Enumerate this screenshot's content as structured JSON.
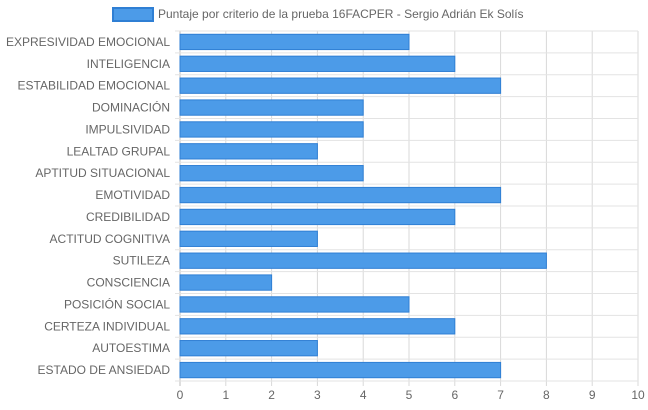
{
  "chart_data": {
    "type": "bar",
    "orientation": "horizontal",
    "categories": [
      "EXPRESIVIDAD EMOCIONAL",
      "INTELIGENCIA",
      "ESTABILIDAD EMOCIONAL",
      "DOMINACIÓN",
      "IMPULSIVIDAD",
      "LEALTAD GRUPAL",
      "APTITUD SITUACIONAL",
      "EMOTIVIDAD",
      "CREDIBILIDAD",
      "ACTITUD COGNITIVA",
      "SUTILEZA",
      "CONSCIENCIA",
      "POSICIÓN SOCIAL",
      "CERTEZA INDIVIDUAL",
      "AUTOESTIMA",
      "ESTADO DE ANSIEDAD"
    ],
    "series": [
      {
        "name": "Puntaje por criterio de la prueba 16FACPER - Sergio Adrián Ek Solís",
        "values": [
          5,
          6,
          7,
          4,
          4,
          3,
          4,
          7,
          6,
          3,
          8,
          2,
          5,
          6,
          3,
          7
        ],
        "color": "#4c9be8",
        "border_color": "#2f7fd4"
      }
    ],
    "xlim": [
      0,
      10
    ],
    "xticks": [
      "0",
      "1",
      "2",
      "3",
      "4",
      "5",
      "6",
      "7",
      "8",
      "9",
      "10"
    ],
    "grid": true,
    "legend_position": "top",
    "title": "",
    "xlabel": "",
    "ylabel": ""
  }
}
